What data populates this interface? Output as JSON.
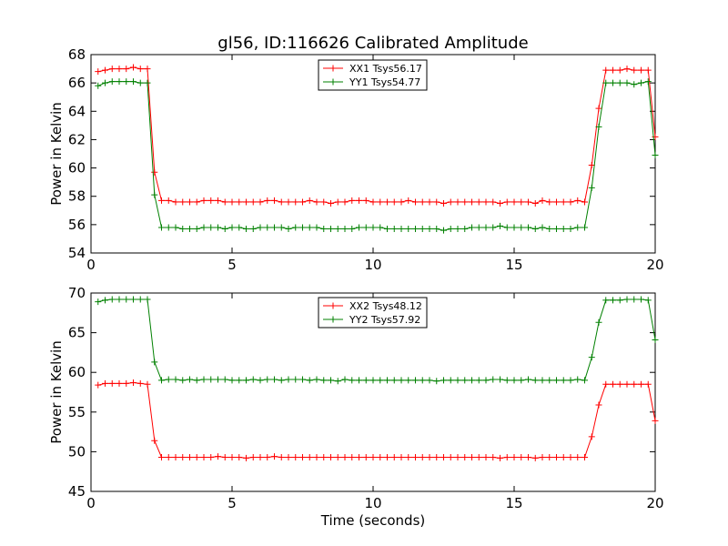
{
  "title": "gl56, ID:116626 Calibrated Amplitude",
  "xlabel": "Time (seconds)",
  "colors": {
    "red": "#ff0000",
    "green": "#008000"
  },
  "chart_data": [
    {
      "type": "line",
      "ylabel": "Power in Kelvin",
      "xlim": [
        0,
        20
      ],
      "ylim": [
        54,
        68
      ],
      "xticks": [
        "0",
        "5",
        "10",
        "15",
        "20"
      ],
      "yticks": [
        "54",
        "56",
        "58",
        "60",
        "62",
        "64",
        "66",
        "68"
      ],
      "legend": "top-center",
      "x": [
        0.25,
        0.5,
        0.75,
        1.0,
        1.25,
        1.5,
        1.75,
        2.0,
        2.25,
        2.5,
        2.75,
        3.0,
        3.25,
        3.5,
        3.75,
        4.0,
        4.25,
        4.5,
        4.75,
        5.0,
        5.25,
        5.5,
        5.75,
        6.0,
        6.25,
        6.5,
        6.75,
        7.0,
        7.25,
        7.5,
        7.75,
        8.0,
        8.25,
        8.5,
        8.75,
        9.0,
        9.25,
        9.5,
        9.75,
        10.0,
        10.25,
        10.5,
        10.75,
        11.0,
        11.25,
        11.5,
        11.75,
        12.0,
        12.25,
        12.5,
        12.75,
        13.0,
        13.25,
        13.5,
        13.75,
        14.0,
        14.25,
        14.5,
        14.75,
        15.0,
        15.25,
        15.5,
        15.75,
        16.0,
        16.25,
        16.5,
        16.75,
        17.0,
        17.25,
        17.5,
        17.75,
        18.0,
        18.25,
        18.5,
        18.75,
        19.0,
        19.25,
        19.5,
        19.75,
        20.0
      ],
      "series": [
        {
          "name": "XX1 Tsys56.17",
          "color": "#ff0000",
          "values": [
            66.8,
            66.9,
            67.0,
            67.0,
            67.0,
            67.1,
            67.0,
            67.0,
            59.7,
            57.7,
            57.7,
            57.6,
            57.6,
            57.6,
            57.6,
            57.7,
            57.7,
            57.7,
            57.6,
            57.6,
            57.6,
            57.6,
            57.6,
            57.6,
            57.7,
            57.7,
            57.6,
            57.6,
            57.6,
            57.6,
            57.7,
            57.6,
            57.6,
            57.5,
            57.6,
            57.6,
            57.7,
            57.7,
            57.7,
            57.6,
            57.6,
            57.6,
            57.6,
            57.6,
            57.7,
            57.6,
            57.6,
            57.6,
            57.6,
            57.5,
            57.6,
            57.6,
            57.6,
            57.6,
            57.6,
            57.6,
            57.6,
            57.5,
            57.6,
            57.6,
            57.6,
            57.6,
            57.5,
            57.7,
            57.6,
            57.6,
            57.6,
            57.6,
            57.7,
            57.6,
            60.2,
            64.2,
            66.9,
            66.9,
            66.9,
            67.0,
            66.9,
            66.9,
            66.9,
            62.2
          ]
        },
        {
          "name": "YY1 Tsys54.77",
          "color": "#008000",
          "values": [
            65.8,
            66.0,
            66.1,
            66.1,
            66.1,
            66.1,
            66.0,
            66.0,
            58.1,
            55.8,
            55.8,
            55.8,
            55.7,
            55.7,
            55.7,
            55.8,
            55.8,
            55.8,
            55.7,
            55.8,
            55.8,
            55.7,
            55.7,
            55.8,
            55.8,
            55.8,
            55.8,
            55.7,
            55.8,
            55.8,
            55.8,
            55.8,
            55.7,
            55.7,
            55.7,
            55.7,
            55.7,
            55.8,
            55.8,
            55.8,
            55.8,
            55.7,
            55.7,
            55.7,
            55.7,
            55.7,
            55.7,
            55.7,
            55.7,
            55.6,
            55.7,
            55.7,
            55.7,
            55.8,
            55.8,
            55.8,
            55.8,
            55.9,
            55.8,
            55.8,
            55.8,
            55.8,
            55.7,
            55.8,
            55.7,
            55.7,
            55.7,
            55.7,
            55.8,
            55.8,
            58.6,
            62.9,
            66.0,
            66.0,
            66.0,
            66.0,
            65.9,
            66.0,
            66.1,
            60.9
          ]
        }
      ]
    },
    {
      "type": "line",
      "ylabel": "Power in Kelvin",
      "xlim": [
        0,
        20
      ],
      "ylim": [
        45,
        70
      ],
      "xticks": [
        "0",
        "5",
        "10",
        "15",
        "20"
      ],
      "yticks": [
        "45",
        "50",
        "55",
        "60",
        "65",
        "70"
      ],
      "legend": "top-center",
      "x": [
        0.25,
        0.5,
        0.75,
        1.0,
        1.25,
        1.5,
        1.75,
        2.0,
        2.25,
        2.5,
        2.75,
        3.0,
        3.25,
        3.5,
        3.75,
        4.0,
        4.25,
        4.5,
        4.75,
        5.0,
        5.25,
        5.5,
        5.75,
        6.0,
        6.25,
        6.5,
        6.75,
        7.0,
        7.25,
        7.5,
        7.75,
        8.0,
        8.25,
        8.5,
        8.75,
        9.0,
        9.25,
        9.5,
        9.75,
        10.0,
        10.25,
        10.5,
        10.75,
        11.0,
        11.25,
        11.5,
        11.75,
        12.0,
        12.25,
        12.5,
        12.75,
        13.0,
        13.25,
        13.5,
        13.75,
        14.0,
        14.25,
        14.5,
        14.75,
        15.0,
        15.25,
        15.5,
        15.75,
        16.0,
        16.25,
        16.5,
        16.75,
        17.0,
        17.25,
        17.5,
        17.75,
        18.0,
        18.25,
        18.5,
        18.75,
        19.0,
        19.25,
        19.5,
        19.75,
        20.0
      ],
      "series": [
        {
          "name": "XX2 Tsys48.12",
          "color": "#ff0000",
          "values": [
            58.4,
            58.6,
            58.6,
            58.6,
            58.6,
            58.7,
            58.6,
            58.5,
            51.4,
            49.3,
            49.3,
            49.3,
            49.3,
            49.3,
            49.3,
            49.3,
            49.3,
            49.4,
            49.3,
            49.3,
            49.3,
            49.2,
            49.3,
            49.3,
            49.3,
            49.4,
            49.3,
            49.3,
            49.3,
            49.3,
            49.3,
            49.3,
            49.3,
            49.3,
            49.3,
            49.3,
            49.3,
            49.3,
            49.3,
            49.3,
            49.3,
            49.3,
            49.3,
            49.3,
            49.3,
            49.3,
            49.3,
            49.3,
            49.3,
            49.3,
            49.3,
            49.3,
            49.3,
            49.3,
            49.3,
            49.3,
            49.3,
            49.2,
            49.3,
            49.3,
            49.3,
            49.3,
            49.2,
            49.3,
            49.3,
            49.3,
            49.3,
            49.3,
            49.3,
            49.3,
            51.9,
            55.9,
            58.5,
            58.5,
            58.5,
            58.5,
            58.5,
            58.5,
            58.5,
            53.9
          ]
        },
        {
          "name": "YY2 Tsys57.92",
          "color": "#008000",
          "values": [
            68.9,
            69.1,
            69.2,
            69.2,
            69.2,
            69.2,
            69.2,
            69.2,
            61.3,
            59.0,
            59.1,
            59.1,
            59.0,
            59.1,
            59.0,
            59.1,
            59.1,
            59.1,
            59.1,
            59.0,
            59.0,
            59.0,
            59.1,
            59.0,
            59.1,
            59.1,
            59.0,
            59.1,
            59.1,
            59.1,
            59.0,
            59.1,
            59.0,
            59.0,
            58.9,
            59.1,
            59.0,
            59.0,
            59.0,
            59.0,
            59.0,
            59.0,
            59.0,
            59.0,
            59.0,
            59.0,
            59.0,
            59.0,
            58.9,
            59.0,
            59.0,
            59.0,
            59.0,
            59.0,
            59.0,
            59.0,
            59.1,
            59.1,
            59.0,
            59.0,
            59.0,
            59.1,
            59.0,
            59.0,
            59.0,
            59.0,
            59.0,
            59.0,
            59.1,
            59.0,
            61.9,
            66.3,
            69.1,
            69.1,
            69.1,
            69.2,
            69.2,
            69.2,
            69.1,
            64.1
          ]
        }
      ]
    }
  ]
}
